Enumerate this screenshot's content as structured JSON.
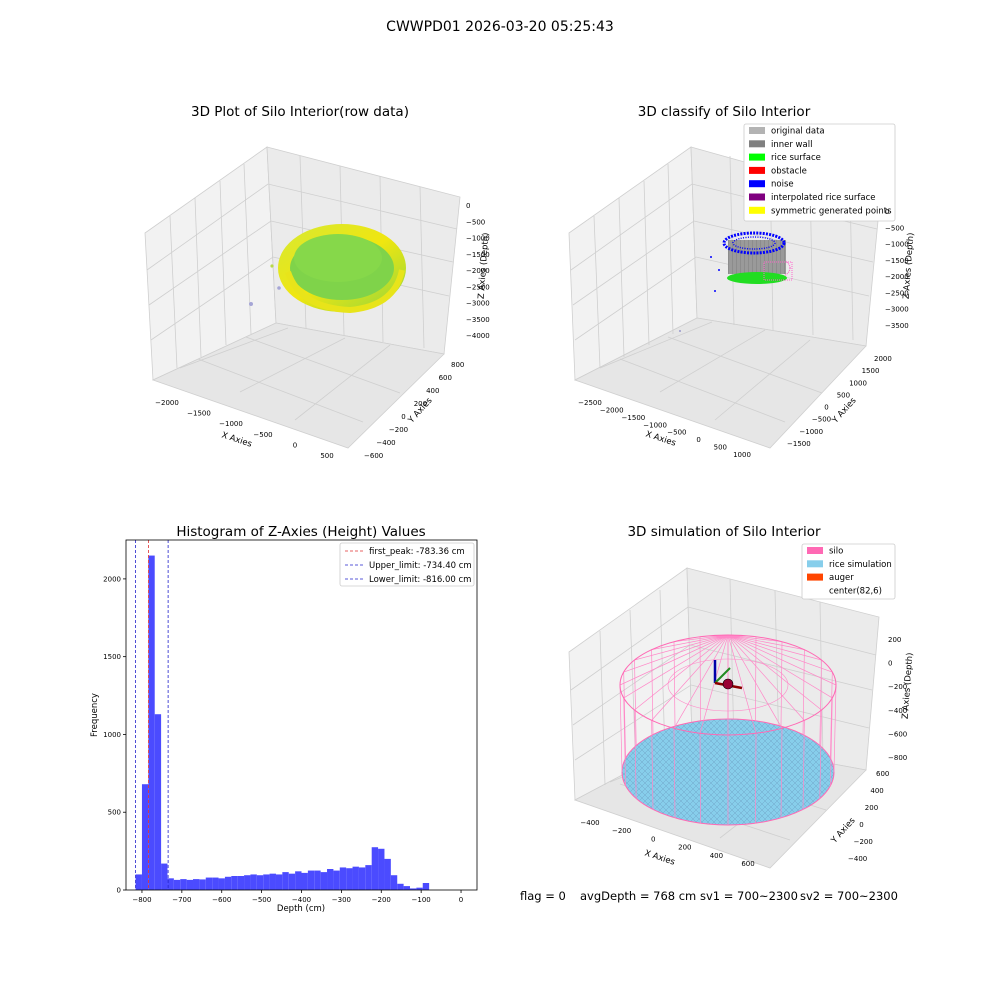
{
  "suptitle": "CWWPD01 2026-03-20 05:25:43",
  "footer": {
    "flag": "flag = 0",
    "avg_depth": "avgDepth = 768 cm",
    "sv1": "sv1 = 700~2300",
    "sv2": "sv2 = 700~2300"
  },
  "colors": {
    "hist_bar": "#4b4bff",
    "peak_line": "#e03030",
    "limit_line": "#2222cc",
    "original": "#b3b3b3",
    "inner_wall": "#808080",
    "rice_surface": "#00ff00",
    "obstacle": "#ff0000",
    "noise": "#0000ff",
    "interpolated": "#800080",
    "symmetric": "#ffff00",
    "silo": "#ff69b4",
    "rice_sim": "#87ceeb",
    "auger": "#ff4500"
  },
  "chart_data": [
    {
      "type": "scatter",
      "subtype": "3d",
      "title": "3D Plot of Silo Interior(row data)",
      "xlabel": "X Axies",
      "ylabel": "Y Axies",
      "zlabel": "Z Axies (Depth)",
      "x_ticks": [
        "−2000",
        "−1500",
        "−1000",
        "−500",
        "0",
        "500"
      ],
      "y_ticks": [
        "−600",
        "−400",
        "−200",
        "0",
        "200",
        "400",
        "600",
        "800"
      ],
      "z_ticks": [
        "0",
        "−500",
        "−1000",
        "−1500",
        "−2000",
        "−2500",
        "−3000",
        "−3500",
        "−4000"
      ]
    },
    {
      "type": "scatter",
      "subtype": "3d",
      "title": "3D classify of Silo Interior",
      "xlabel": "X Axies",
      "ylabel": "Y Axies",
      "zlabel": "Z Axies (Depth)",
      "x_ticks": [
        "−2500",
        "−2000",
        "−1500",
        "−1000",
        "−500",
        "0",
        "500",
        "1000"
      ],
      "y_ticks": [
        "−1500",
        "−1000",
        "−500",
        "0",
        "500",
        "1000",
        "1500",
        "2000"
      ],
      "z_ticks": [
        "0",
        "−500",
        "−1000",
        "−1500",
        "−2000",
        "−2500",
        "−3000",
        "−3500"
      ],
      "legend": [
        "original data",
        "inner wall",
        "rice surface",
        "obstacle",
        "noise",
        "interpolated rice surface",
        "symmetric generated points"
      ],
      "legend_position": "top-right"
    },
    {
      "type": "bar",
      "subtype": "histogram",
      "title": "Histogram of Z-Axies (Height) Values",
      "xlabel": "Depth (cm)",
      "ylabel": "Frequency",
      "xlim": [
        -840,
        40
      ],
      "ylim": [
        0,
        2250
      ],
      "x_ticks": [
        -800,
        -700,
        -600,
        -500,
        -400,
        -300,
        -200,
        -100,
        0
      ],
      "x_tick_labels": [
        "−800",
        "−700",
        "−600",
        "−500",
        "−400",
        "−300",
        "−200",
        "−100",
        "0"
      ],
      "y_ticks": [
        0,
        500,
        1000,
        1500,
        2000
      ],
      "bin_start": -816,
      "bin_width": 16,
      "values": [
        100,
        680,
        2150,
        1130,
        170,
        75,
        65,
        70,
        65,
        70,
        68,
        80,
        80,
        75,
        85,
        90,
        90,
        95,
        100,
        95,
        100,
        105,
        100,
        115,
        105,
        120,
        110,
        125,
        125,
        115,
        135,
        125,
        145,
        140,
        150,
        145,
        160,
        275,
        265,
        200,
        95,
        40,
        25,
        10,
        15,
        45
      ],
      "vlines": [
        {
          "label": "first_peak: -783.36 cm",
          "x": -783.36,
          "style": "peak"
        },
        {
          "label": "Upper_limit: -734.40 cm",
          "x": -734.4,
          "style": "limit"
        },
        {
          "label": "Lower_limit: -816.00 cm",
          "x": -816.0,
          "style": "limit"
        }
      ],
      "legend_position": "top-right"
    },
    {
      "type": "scatter",
      "subtype": "3d",
      "title": "3D simulation of Silo Interior",
      "xlabel": "X Axies",
      "ylabel": "Y Axies",
      "zlabel": "Z Axies (Depth)",
      "x_ticks": [
        "−400",
        "−200",
        "0",
        "200",
        "400",
        "600"
      ],
      "y_ticks": [
        "−400",
        "−200",
        "0",
        "200",
        "400",
        "600"
      ],
      "z_ticks": [
        "200",
        "0",
        "−200",
        "−400",
        "−600",
        "−800"
      ],
      "legend": [
        "silo",
        "rice simulation",
        "auger",
        "center(82,6)"
      ],
      "legend_position": "top-right"
    }
  ]
}
